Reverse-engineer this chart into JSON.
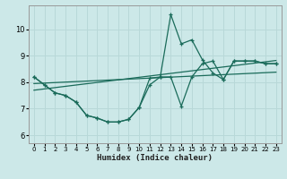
{
  "xlabel": "Humidex (Indice chaleur)",
  "bg_color": "#cce8e8",
  "line_color": "#1a6b5a",
  "grid_color": "#b8d8d8",
  "xlim": [
    -0.5,
    23.5
  ],
  "ylim": [
    5.7,
    10.9
  ],
  "yticks": [
    6,
    7,
    8,
    9,
    10
  ],
  "xticks": [
    0,
    1,
    2,
    3,
    4,
    5,
    6,
    7,
    8,
    9,
    10,
    11,
    12,
    13,
    14,
    15,
    16,
    17,
    18,
    19,
    20,
    21,
    22,
    23
  ],
  "curve_dip_x": [
    0,
    1,
    2,
    3,
    4,
    5,
    6,
    7,
    8,
    9,
    10,
    11,
    12,
    13,
    14,
    15,
    16,
    17,
    18,
    19,
    20,
    21,
    22,
    23
  ],
  "curve_dip_y": [
    8.2,
    7.9,
    7.6,
    7.5,
    7.25,
    6.75,
    6.65,
    6.5,
    6.5,
    6.6,
    7.05,
    7.9,
    8.2,
    8.2,
    7.1,
    8.2,
    8.7,
    8.8,
    8.1,
    8.8,
    8.8,
    8.8,
    8.7,
    8.7
  ],
  "curve_spike_x": [
    0,
    1,
    2,
    3,
    4,
    5,
    6,
    7,
    8,
    9,
    10,
    11,
    12,
    13,
    14,
    15,
    16,
    17,
    18,
    19,
    20,
    21,
    22,
    23
  ],
  "curve_spike_y": [
    8.2,
    7.9,
    7.6,
    7.5,
    7.25,
    6.75,
    6.65,
    6.5,
    6.5,
    6.6,
    7.05,
    8.15,
    8.2,
    10.55,
    9.45,
    9.6,
    8.85,
    8.35,
    8.1,
    8.8,
    8.8,
    8.8,
    8.7,
    8.7
  ],
  "line1_x": [
    0,
    23
  ],
  "line1_y": [
    7.95,
    8.38
  ],
  "line2_x": [
    0,
    23
  ],
  "line2_y": [
    7.7,
    8.82
  ]
}
